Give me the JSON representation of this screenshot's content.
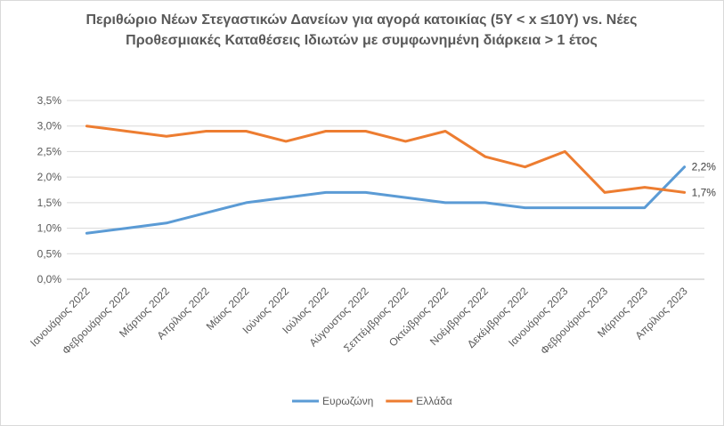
{
  "chart_data": {
    "type": "line",
    "title": "Περιθώριο Νέων Στεγαστικών Δανείων για αγορά κατοικίας (5Y < x ≤10Y) vs. Νέες Προθεσμιακές Καταθέσεις Ιδιωτών με συμφωνημένη διάρκεια > 1 έτος",
    "categories": [
      "Ιανουάριος 2022",
      "Φεβρουάριος 2022",
      "Μάρτιος 2022",
      "Απρίλιος 2022",
      "Μάιος 2022",
      "Ιούνιος 2022",
      "Ιούλιος 2022",
      "Αύγουστος 2022",
      "Σεπτέμβριος 2022",
      "Οκτώβριος 2022",
      "Νοέμβριος 2022",
      "Δεκέμβριος 2022",
      "Ιανουάριος 2023",
      "Φεβρουάριος 2023",
      "Μάρτιος 2023",
      "Απρίλιος 2023"
    ],
    "series": [
      {
        "name": "Ευρωζώνη",
        "color": "#5b9bd5",
        "values": [
          0.9,
          1.0,
          1.1,
          1.3,
          1.5,
          1.6,
          1.7,
          1.7,
          1.6,
          1.5,
          1.5,
          1.4,
          1.4,
          1.4,
          1.4,
          2.2
        ],
        "end_label": "2,2%"
      },
      {
        "name": "Ελλάδα",
        "color": "#ed7d31",
        "values": [
          3.0,
          2.9,
          2.8,
          2.9,
          2.9,
          2.7,
          2.9,
          2.9,
          2.7,
          2.9,
          2.4,
          2.2,
          2.5,
          1.7,
          1.8,
          1.7
        ],
        "end_label": "1,7%"
      }
    ],
    "yticks": [
      "0,0%",
      "0,5%",
      "1,0%",
      "1,5%",
      "2,0%",
      "2,5%",
      "3,0%",
      "3,5%"
    ],
    "ylim": [
      0,
      3.5
    ],
    "grid": true,
    "legend_position": "bottom"
  }
}
